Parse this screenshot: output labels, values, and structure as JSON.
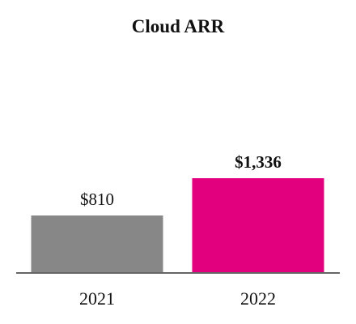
{
  "chart_data": {
    "type": "bar",
    "title": "Cloud ARR",
    "categories": [
      "2021",
      "2022"
    ],
    "values": [
      810,
      1336
    ],
    "value_labels": [
      "$810",
      "$1,336"
    ],
    "bold_value_labels": [
      false,
      true
    ],
    "bar_colors": [
      "#878787",
      "#e2007f"
    ],
    "axis_color": "#666666",
    "xlabel": "",
    "ylabel": "",
    "grid": false,
    "legend": "none"
  }
}
